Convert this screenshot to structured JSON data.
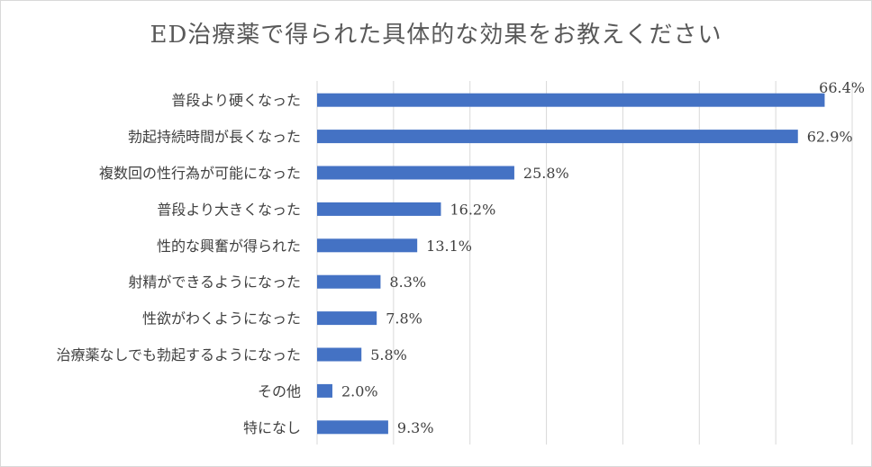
{
  "chart_data": {
    "type": "bar",
    "orientation": "horizontal",
    "title": "ED治療薬で得られた具体的な効果をお教えください",
    "categories": [
      "普段より硬くなった",
      "勃起持続時間が長くなった",
      "複数回の性行為が可能になった",
      "普段より大きくなった",
      "性的な興奮が得られた",
      "射精ができるようになった",
      "性欲がわくようになった",
      "治療薬なしでも勃起するようになった",
      "その他",
      "特になし"
    ],
    "values": [
      66.4,
      62.9,
      25.8,
      16.2,
      13.1,
      8.3,
      7.8,
      5.8,
      2.0,
      9.3
    ],
    "value_labels": [
      "66.4%",
      "62.9%",
      "25.8%",
      "16.2%",
      "13.1%",
      "8.3%",
      "7.8%",
      "5.8%",
      "2.0%",
      "9.3%"
    ],
    "xlim": [
      0,
      70
    ],
    "grid": true,
    "bar_color": "#4472c4"
  }
}
